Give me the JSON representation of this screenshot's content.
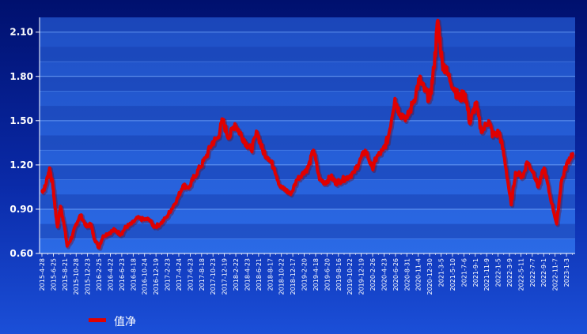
{
  "chart_data": {
    "type": "line",
    "title": "",
    "xlabel": "",
    "ylabel": "",
    "ylim": [
      0.6,
      2.2
    ],
    "y_ticks": [
      "0.60",
      "0.90",
      "1.20",
      "1.50",
      "1.80",
      "2.10"
    ],
    "x_tick_labels": [
      "2015-4-28",
      "2015-6-25",
      "2015-8-21",
      "2015-10-28",
      "2015-12-23",
      "2016-2-25",
      "2016-4-22",
      "2016-6-23",
      "2016-8-18",
      "2016-10-24",
      "2016-12-19",
      "2017-2-23",
      "2017-4-24",
      "2017-6-23",
      "2017-8-18",
      "2017-10-23",
      "2017-12-19",
      "2018-2-22",
      "2018-4-23",
      "2018-6-21",
      "2018-8-17",
      "2018-10-22",
      "2018-12-17",
      "2019-2-20",
      "2019-4-18",
      "2019-6-20",
      "2019-8-16",
      "2019-10-22",
      "2019-12-19",
      "2020-2-26",
      "2020-4-23",
      "2020-6-26",
      "2020-8-31",
      "2020-11-4",
      "2020-12-30",
      "2021-3-5",
      "2021-5-10",
      "2021-7-6",
      "2021-9-1",
      "2021-11-9",
      "2022-1-5",
      "2022-3-9",
      "2022-5-11",
      "2022-7-7",
      "2022-9-1",
      "2022-11-7",
      "2023-1-3"
    ],
    "grid": true,
    "legend_position": "bottom-left",
    "line_color": "#e00000",
    "series": [
      {
        "name": "值净",
        "x": [
          "2015-4-28",
          "2015-5-15",
          "2015-6-8",
          "2015-6-25",
          "2015-7-8",
          "2015-7-20",
          "2015-8-5",
          "2015-8-21",
          "2015-9-10",
          "2015-10-8",
          "2015-10-28",
          "2015-11-20",
          "2015-12-23",
          "2016-1-15",
          "2016-1-28",
          "2016-2-25",
          "2016-3-20",
          "2016-4-22",
          "2016-5-20",
          "2016-6-23",
          "2016-7-20",
          "2016-8-18",
          "2016-9-20",
          "2016-10-24",
          "2016-11-20",
          "2016-12-19",
          "2017-1-20",
          "2017-2-23",
          "2017-3-20",
          "2017-4-24",
          "2017-5-20",
          "2017-6-23",
          "2017-7-20",
          "2017-8-18",
          "2017-9-20",
          "2017-10-23",
          "2017-11-20",
          "2017-12-19",
          "2018-1-20",
          "2018-2-22",
          "2018-3-20",
          "2018-4-23",
          "2018-5-20",
          "2018-6-21",
          "2018-7-20",
          "2018-8-17",
          "2018-9-20",
          "2018-10-22",
          "2018-11-20",
          "2018-12-17",
          "2019-1-20",
          "2019-2-20",
          "2019-3-20",
          "2019-4-18",
          "2019-5-20",
          "2019-6-20",
          "2019-7-20",
          "2019-8-16",
          "2019-9-20",
          "2019-10-22",
          "2019-11-20",
          "2019-12-19",
          "2020-1-20",
          "2020-2-26",
          "2020-3-20",
          "2020-4-23",
          "2020-5-20",
          "2020-6-26",
          "2020-7-20",
          "2020-8-31",
          "2020-10-1",
          "2020-11-4",
          "2020-12-1",
          "2020-12-30",
          "2021-1-20",
          "2021-2-10",
          "2021-3-5",
          "2021-4-1",
          "2021-5-10",
          "2021-6-1",
          "2021-7-6",
          "2021-8-1",
          "2021-9-1",
          "2021-10-1",
          "2021-11-9",
          "2021-12-1",
          "2022-1-5",
          "2022-2-1",
          "2022-3-9",
          "2022-4-1",
          "2022-5-11",
          "2022-6-1",
          "2022-7-7",
          "2022-8-1",
          "2022-9-1",
          "2022-10-1",
          "2022-11-7",
          "2022-12-1",
          "2023-1-3",
          "2023-2-1"
        ],
        "y": [
          1.02,
          1.05,
          1.18,
          1.06,
          0.9,
          0.78,
          0.92,
          0.82,
          0.65,
          0.72,
          0.8,
          0.86,
          0.78,
          0.8,
          0.72,
          0.64,
          0.72,
          0.74,
          0.76,
          0.73,
          0.78,
          0.8,
          0.84,
          0.83,
          0.83,
          0.78,
          0.8,
          0.85,
          0.9,
          0.98,
          1.06,
          1.05,
          1.12,
          1.18,
          1.25,
          1.35,
          1.38,
          1.5,
          1.38,
          1.48,
          1.42,
          1.35,
          1.3,
          1.42,
          1.3,
          1.25,
          1.18,
          1.05,
          1.03,
          1.0,
          1.1,
          1.15,
          1.18,
          1.3,
          1.1,
          1.08,
          1.12,
          1.08,
          1.1,
          1.12,
          1.15,
          1.22,
          1.3,
          1.18,
          1.25,
          1.3,
          1.38,
          1.65,
          1.55,
          1.52,
          1.62,
          1.78,
          1.7,
          1.65,
          1.85,
          2.18,
          1.9,
          1.82,
          1.72,
          1.65,
          1.68,
          1.48,
          1.62,
          1.42,
          1.5,
          1.4,
          1.42,
          1.25,
          0.93,
          1.15,
          1.12,
          1.22,
          1.15,
          1.05,
          1.18,
          1.0,
          0.8,
          1.08,
          1.22,
          1.28
        ]
      }
    ]
  }
}
